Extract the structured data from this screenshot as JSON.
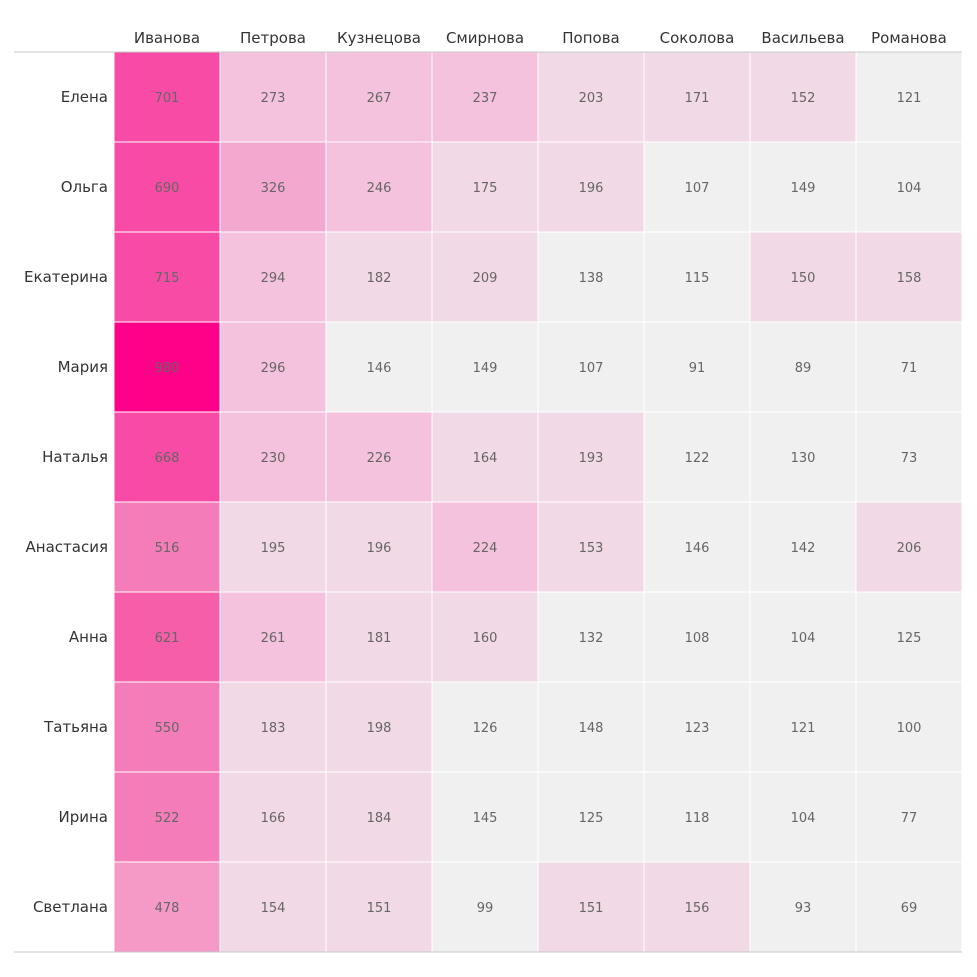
{
  "chart_data": {
    "type": "heatmap",
    "title": "",
    "xlabel": "",
    "ylabel": "",
    "x": [
      "Иванова",
      "Петрова",
      "Кузнецова",
      "Смирнова",
      "Попова",
      "Соколова",
      "Васильева",
      "Романова"
    ],
    "y": [
      "Елена",
      "Ольга",
      "Екатерина",
      "Мария",
      "Наталья",
      "Анастасия",
      "Анна",
      "Татьяна",
      "Ирина",
      "Светлана"
    ],
    "values": [
      [
        701,
        273,
        267,
        237,
        203,
        171,
        152,
        121
      ],
      [
        690,
        326,
        246,
        175,
        196,
        107,
        149,
        104
      ],
      [
        715,
        294,
        182,
        209,
        138,
        115,
        150,
        158
      ],
      [
        980,
        296,
        146,
        149,
        107,
        91,
        89,
        71
      ],
      [
        668,
        230,
        226,
        164,
        193,
        122,
        130,
        73
      ],
      [
        516,
        195,
        196,
        224,
        153,
        146,
        142,
        206
      ],
      [
        621,
        261,
        181,
        160,
        132,
        108,
        104,
        125
      ],
      [
        550,
        183,
        198,
        126,
        148,
        123,
        121,
        100
      ],
      [
        522,
        166,
        184,
        145,
        125,
        118,
        104,
        77
      ],
      [
        478,
        154,
        151,
        99,
        151,
        156,
        93,
        69
      ]
    ],
    "color_scale": [
      {
        "min": 950,
        "color": "#ff0088"
      },
      {
        "min": 650,
        "color": "#f84ba5"
      },
      {
        "min": 600,
        "color": "#f65eaa"
      },
      {
        "min": 500,
        "color": "#f47cb8"
      },
      {
        "min": 400,
        "color": "#f599c6"
      },
      {
        "min": 300,
        "color": "#f3a8d0"
      },
      {
        "min": 220,
        "color": "#f4c2dc"
      },
      {
        "min": 150,
        "color": "#f2d9e6"
      },
      {
        "min": 0,
        "color": "#f0f0f0"
      }
    ],
    "grid": true
  }
}
